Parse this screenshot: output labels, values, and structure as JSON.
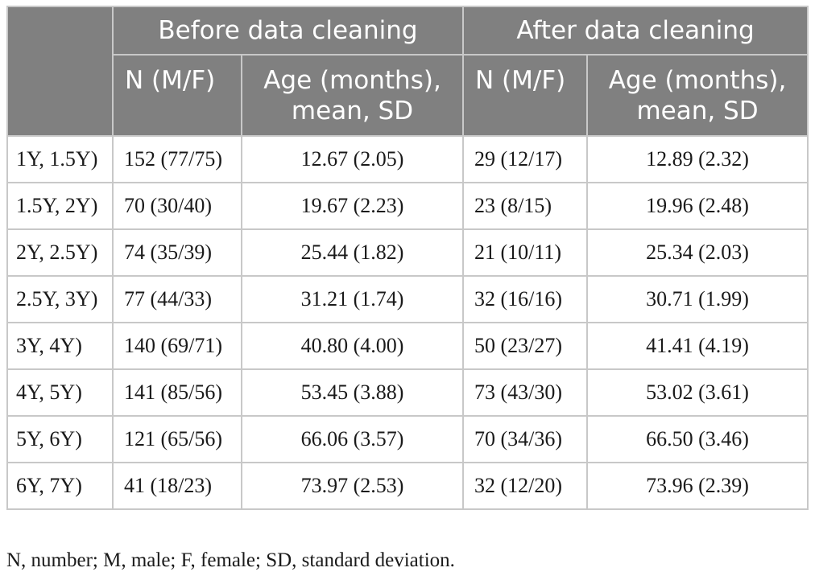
{
  "header": {
    "before_group": "Before data cleaning",
    "after_group": "After data cleaning",
    "n_col": "N (M/F)",
    "age_col_line1": "Age (months),",
    "age_col_line2": "mean, SD"
  },
  "rows": [
    {
      "label": "1Y, 1.5Y)",
      "before_n": "152 (77/75)",
      "before_age": "12.67 (2.05)",
      "after_n": "29 (12/17)",
      "after_age": "12.89 (2.32)"
    },
    {
      "label": "1.5Y, 2Y)",
      "before_n": "70 (30/40)",
      "before_age": "19.67 (2.23)",
      "after_n": "23 (8/15)",
      "after_age": "19.96 (2.48)"
    },
    {
      "label": "2Y, 2.5Y)",
      "before_n": "74 (35/39)",
      "before_age": "25.44 (1.82)",
      "after_n": "21 (10/11)",
      "after_age": "25.34 (2.03)"
    },
    {
      "label": "2.5Y, 3Y)",
      "before_n": "77 (44/33)",
      "before_age": "31.21 (1.74)",
      "after_n": "32 (16/16)",
      "after_age": "30.71 (1.99)"
    },
    {
      "label": "3Y, 4Y)",
      "before_n": "140 (69/71)",
      "before_age": "40.80 (4.00)",
      "after_n": "50 (23/27)",
      "after_age": "41.41 (4.19)"
    },
    {
      "label": "4Y, 5Y)",
      "before_n": "141 (85/56)",
      "before_age": "53.45 (3.88)",
      "after_n": "73 (43/30)",
      "after_age": "53.02 (3.61)"
    },
    {
      "label": "5Y, 6Y)",
      "before_n": "121 (65/56)",
      "before_age": "66.06 (3.57)",
      "after_n": "70 (34/36)",
      "after_age": "66.50 (3.46)"
    },
    {
      "label": "6Y, 7Y)",
      "before_n": "41 (18/23)",
      "before_age": "73.97 (2.53)",
      "after_n": "32 (12/20)",
      "after_age": "73.96 (2.39)"
    }
  ],
  "footnote": "N, number; M, male; F, female; SD, standard deviation."
}
